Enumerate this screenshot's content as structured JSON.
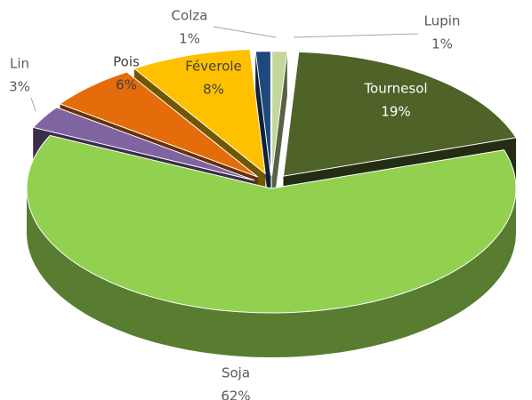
{
  "chart_data": {
    "type": "pie",
    "categories": [
      "Lupin",
      "Tournesol",
      "Soja",
      "Lin",
      "Pois",
      "Féverole",
      "Colza"
    ],
    "values": [
      1,
      19,
      62,
      3,
      6,
      8,
      1
    ],
    "value_labels": [
      "1%",
      "19%",
      "62%",
      "3%",
      "6%",
      "8%",
      "1%"
    ],
    "colors": [
      "#c4d79b",
      "#4f6228",
      "#92d050",
      "#8064a2",
      "#e46c0a",
      "#ffc000",
      "#1f497d"
    ]
  }
}
